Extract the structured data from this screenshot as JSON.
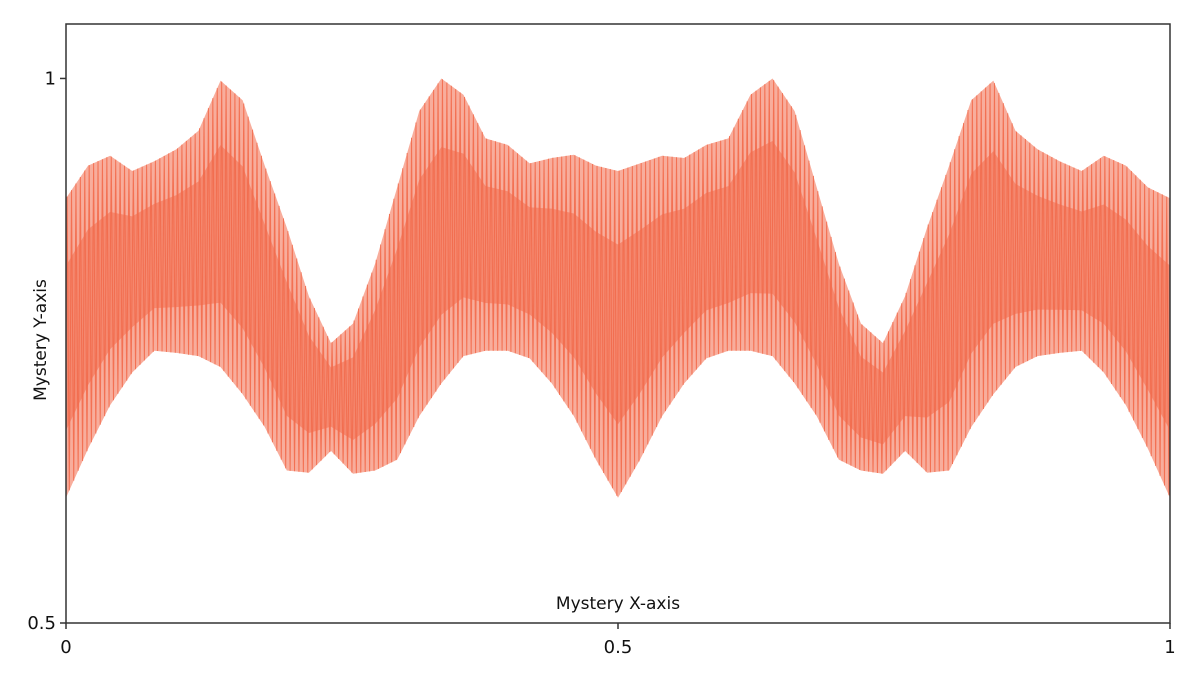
{
  "chart_data": {
    "type": "area",
    "title": "",
    "xlabel": "Mystery X-axis",
    "ylabel": "Mystery Y-axis",
    "xlim": [
      0,
      1
    ],
    "ylim": [
      0.5,
      1.05
    ],
    "x_ticks": [
      0,
      0.5,
      1
    ],
    "x_tick_labels": [
      "0",
      "0.5",
      "1"
    ],
    "y_ticks": [
      0.5,
      1
    ],
    "y_tick_labels": [
      "0.5",
      "1"
    ],
    "grid": false,
    "legend": "none",
    "color": "#f26a4b",
    "oscillation_count_approx": 250,
    "series": [
      {
        "x": [
          0,
          0.02,
          0.04,
          0.06,
          0.08,
          0.1,
          0.12,
          0.14,
          0.16,
          0.18,
          0.2,
          0.22,
          0.24,
          0.26,
          0.28,
          0.3,
          0.32,
          0.34,
          0.36,
          0.38,
          0.4,
          0.42,
          0.44,
          0.46,
          0.48,
          0.5,
          0.52,
          0.54,
          0.56,
          0.58,
          0.6,
          0.62,
          0.64,
          0.66,
          0.68,
          0.7,
          0.72,
          0.74,
          0.76,
          0.78,
          0.8,
          0.82,
          0.84,
          0.86,
          0.88,
          0.9,
          0.92,
          0.94,
          0.96,
          0.98,
          1
        ],
        "upper": [
          0.89,
          0.92,
          0.929,
          0.915,
          0.924,
          0.935,
          0.952,
          0.998,
          0.98,
          0.92,
          0.863,
          0.8,
          0.757,
          0.775,
          0.83,
          0.9,
          0.97,
          1.0,
          0.985,
          0.945,
          0.939,
          0.922,
          0.927,
          0.93,
          0.92,
          0.915,
          0.922,
          0.929,
          0.927,
          0.939,
          0.945,
          0.985,
          1.0,
          0.97,
          0.9,
          0.83,
          0.775,
          0.757,
          0.8,
          0.863,
          0.92,
          0.98,
          0.998,
          0.952,
          0.935,
          0.924,
          0.915,
          0.929,
          0.92,
          0.9,
          0.89
        ],
        "lower": [
          0.615,
          0.66,
          0.7,
          0.73,
          0.75,
          0.748,
          0.745,
          0.735,
          0.71,
          0.68,
          0.64,
          0.638,
          0.658,
          0.637,
          0.64,
          0.65,
          0.69,
          0.72,
          0.745,
          0.75,
          0.75,
          0.743,
          0.72,
          0.69,
          0.65,
          0.615,
          0.65,
          0.69,
          0.72,
          0.743,
          0.75,
          0.75,
          0.745,
          0.72,
          0.69,
          0.65,
          0.64,
          0.637,
          0.658,
          0.638,
          0.64,
          0.68,
          0.71,
          0.735,
          0.745,
          0.748,
          0.75,
          0.73,
          0.7,
          0.66,
          0.615
        ]
      }
    ]
  }
}
